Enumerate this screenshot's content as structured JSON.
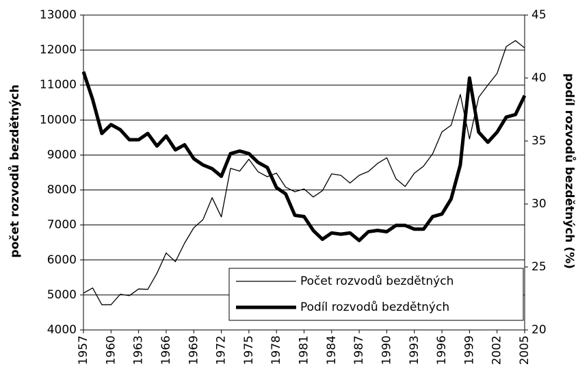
{
  "chart_data": {
    "type": "line",
    "ylabel": "počet rozvodů bezdětných",
    "y2label": "podíl rozvodů bezdětných (%)",
    "xlim": [
      1957,
      2005
    ],
    "xticks": [
      1957,
      1960,
      1963,
      1966,
      1969,
      1972,
      1975,
      1978,
      1981,
      1984,
      1987,
      1990,
      1993,
      1996,
      1999,
      2002,
      2005
    ],
    "x": [
      1957,
      1958,
      1959,
      1960,
      1961,
      1962,
      1963,
      1964,
      1965,
      1966,
      1967,
      1968,
      1969,
      1970,
      1971,
      1972,
      1973,
      1974,
      1975,
      1976,
      1977,
      1978,
      1979,
      1980,
      1981,
      1982,
      1983,
      1984,
      1985,
      1986,
      1987,
      1988,
      1989,
      1990,
      1991,
      1992,
      1993,
      1994,
      1995,
      1996,
      1997,
      1998,
      1999,
      2000,
      2001,
      2002,
      2003,
      2004,
      2005
    ],
    "ylim": [
      4000,
      13000
    ],
    "yticks": [
      4000,
      5000,
      6000,
      7000,
      8000,
      9000,
      10000,
      11000,
      12000,
      13000
    ],
    "y2lim": [
      20,
      45
    ],
    "y2ticks": [
      20,
      25,
      30,
      35,
      40,
      45
    ],
    "grid": true,
    "legend": "lower right",
    "series": [
      {
        "name": "Počet rozvodů bezdětných",
        "color": "#000000",
        "values": [
          5050,
          5200,
          4720,
          4720,
          5020,
          4980,
          5170,
          5160,
          5620,
          6200,
          5950,
          6480,
          6920,
          7150,
          7780,
          7230,
          8620,
          8540,
          8880,
          8520,
          8380,
          8480,
          8080,
          7950,
          8030,
          7800,
          7980,
          8460,
          8420,
          8200,
          8420,
          8530,
          8760,
          8920,
          8320,
          8100,
          8480,
          8680,
          9040,
          9660,
          9850,
          10730,
          9460,
          10650,
          11000,
          11330,
          12100,
          12270,
          12060
        ]
      },
      {
        "name": "Podíl rozvodů bezdětných",
        "color": "#000000",
        "axis": "y2",
        "values": [
          40.5,
          38.3,
          35.6,
          36.3,
          35.9,
          35.1,
          35.1,
          35.6,
          34.6,
          35.4,
          34.3,
          34.7,
          33.6,
          33.1,
          32.8,
          32.2,
          34.0,
          34.2,
          34.0,
          33.3,
          32.9,
          31.3,
          30.8,
          29.1,
          29.0,
          27.9,
          27.2,
          27.7,
          27.6,
          27.7,
          27.1,
          27.8,
          27.9,
          27.8,
          28.3,
          28.3,
          28.0,
          28.0,
          29.0,
          29.2,
          30.4,
          33.1,
          40.0,
          35.7,
          34.9,
          35.7,
          36.9,
          37.1,
          38.6
        ]
      }
    ]
  }
}
